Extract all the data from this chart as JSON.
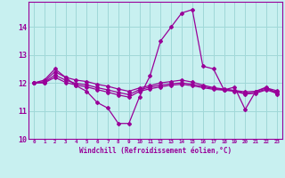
{
  "xlabel": "Windchill (Refroidissement éolien,°C)",
  "ylabel": "",
  "bg_color": "#c8f0f0",
  "line_color": "#990099",
  "grid_color": "#a0d8d8",
  "xlim": [
    -0.5,
    23.5
  ],
  "ylim": [
    10.0,
    14.9
  ],
  "yticks": [
    10,
    11,
    12,
    13,
    14
  ],
  "xticks": [
    0,
    1,
    2,
    3,
    4,
    5,
    6,
    7,
    8,
    9,
    10,
    11,
    12,
    13,
    14,
    15,
    16,
    17,
    18,
    19,
    20,
    21,
    22,
    23
  ],
  "lines": [
    {
      "x": [
        0,
        1,
        2,
        3,
        4,
        5,
        6,
        7,
        8,
        9,
        10,
        11,
        12,
        13,
        14,
        15,
        16,
        17,
        18,
        19,
        20,
        21,
        22,
        23
      ],
      "y": [
        12.0,
        12.1,
        12.5,
        12.2,
        11.9,
        11.7,
        11.3,
        11.1,
        10.55,
        10.55,
        11.5,
        12.25,
        13.5,
        14.0,
        14.5,
        14.62,
        12.6,
        12.5,
        11.75,
        11.85,
        11.05,
        11.7,
        11.85,
        11.6
      ]
    },
    {
      "x": [
        0,
        1,
        2,
        3,
        4,
        5,
        6,
        7,
        8,
        9,
        10,
        11,
        12,
        13,
        14,
        15,
        16,
        17,
        18,
        19,
        20,
        21,
        22,
        23
      ],
      "y": [
        12.0,
        12.05,
        12.4,
        12.2,
        12.1,
        12.05,
        11.95,
        11.88,
        11.78,
        11.7,
        11.82,
        11.9,
        12.0,
        12.05,
        12.1,
        12.03,
        11.92,
        11.83,
        11.78,
        11.73,
        11.68,
        11.7,
        11.82,
        11.72
      ]
    },
    {
      "x": [
        0,
        1,
        2,
        3,
        4,
        5,
        6,
        7,
        8,
        9,
        10,
        11,
        12,
        13,
        14,
        15,
        16,
        17,
        18,
        19,
        20,
        21,
        22,
        23
      ],
      "y": [
        12.0,
        12.02,
        12.28,
        12.1,
        11.98,
        11.93,
        11.83,
        11.75,
        11.66,
        11.58,
        11.76,
        11.85,
        11.92,
        11.97,
        12.0,
        11.95,
        11.87,
        11.8,
        11.76,
        11.72,
        11.63,
        11.66,
        11.78,
        11.68
      ]
    },
    {
      "x": [
        0,
        1,
        2,
        3,
        4,
        5,
        6,
        7,
        8,
        9,
        10,
        11,
        12,
        13,
        14,
        15,
        16,
        17,
        18,
        19,
        20,
        21,
        22,
        23
      ],
      "y": [
        12.0,
        12.0,
        12.2,
        12.02,
        11.92,
        11.86,
        11.76,
        11.67,
        11.57,
        11.49,
        11.7,
        11.79,
        11.86,
        11.92,
        11.95,
        11.9,
        11.83,
        11.77,
        11.74,
        11.7,
        11.6,
        11.63,
        11.75,
        11.63
      ]
    }
  ]
}
